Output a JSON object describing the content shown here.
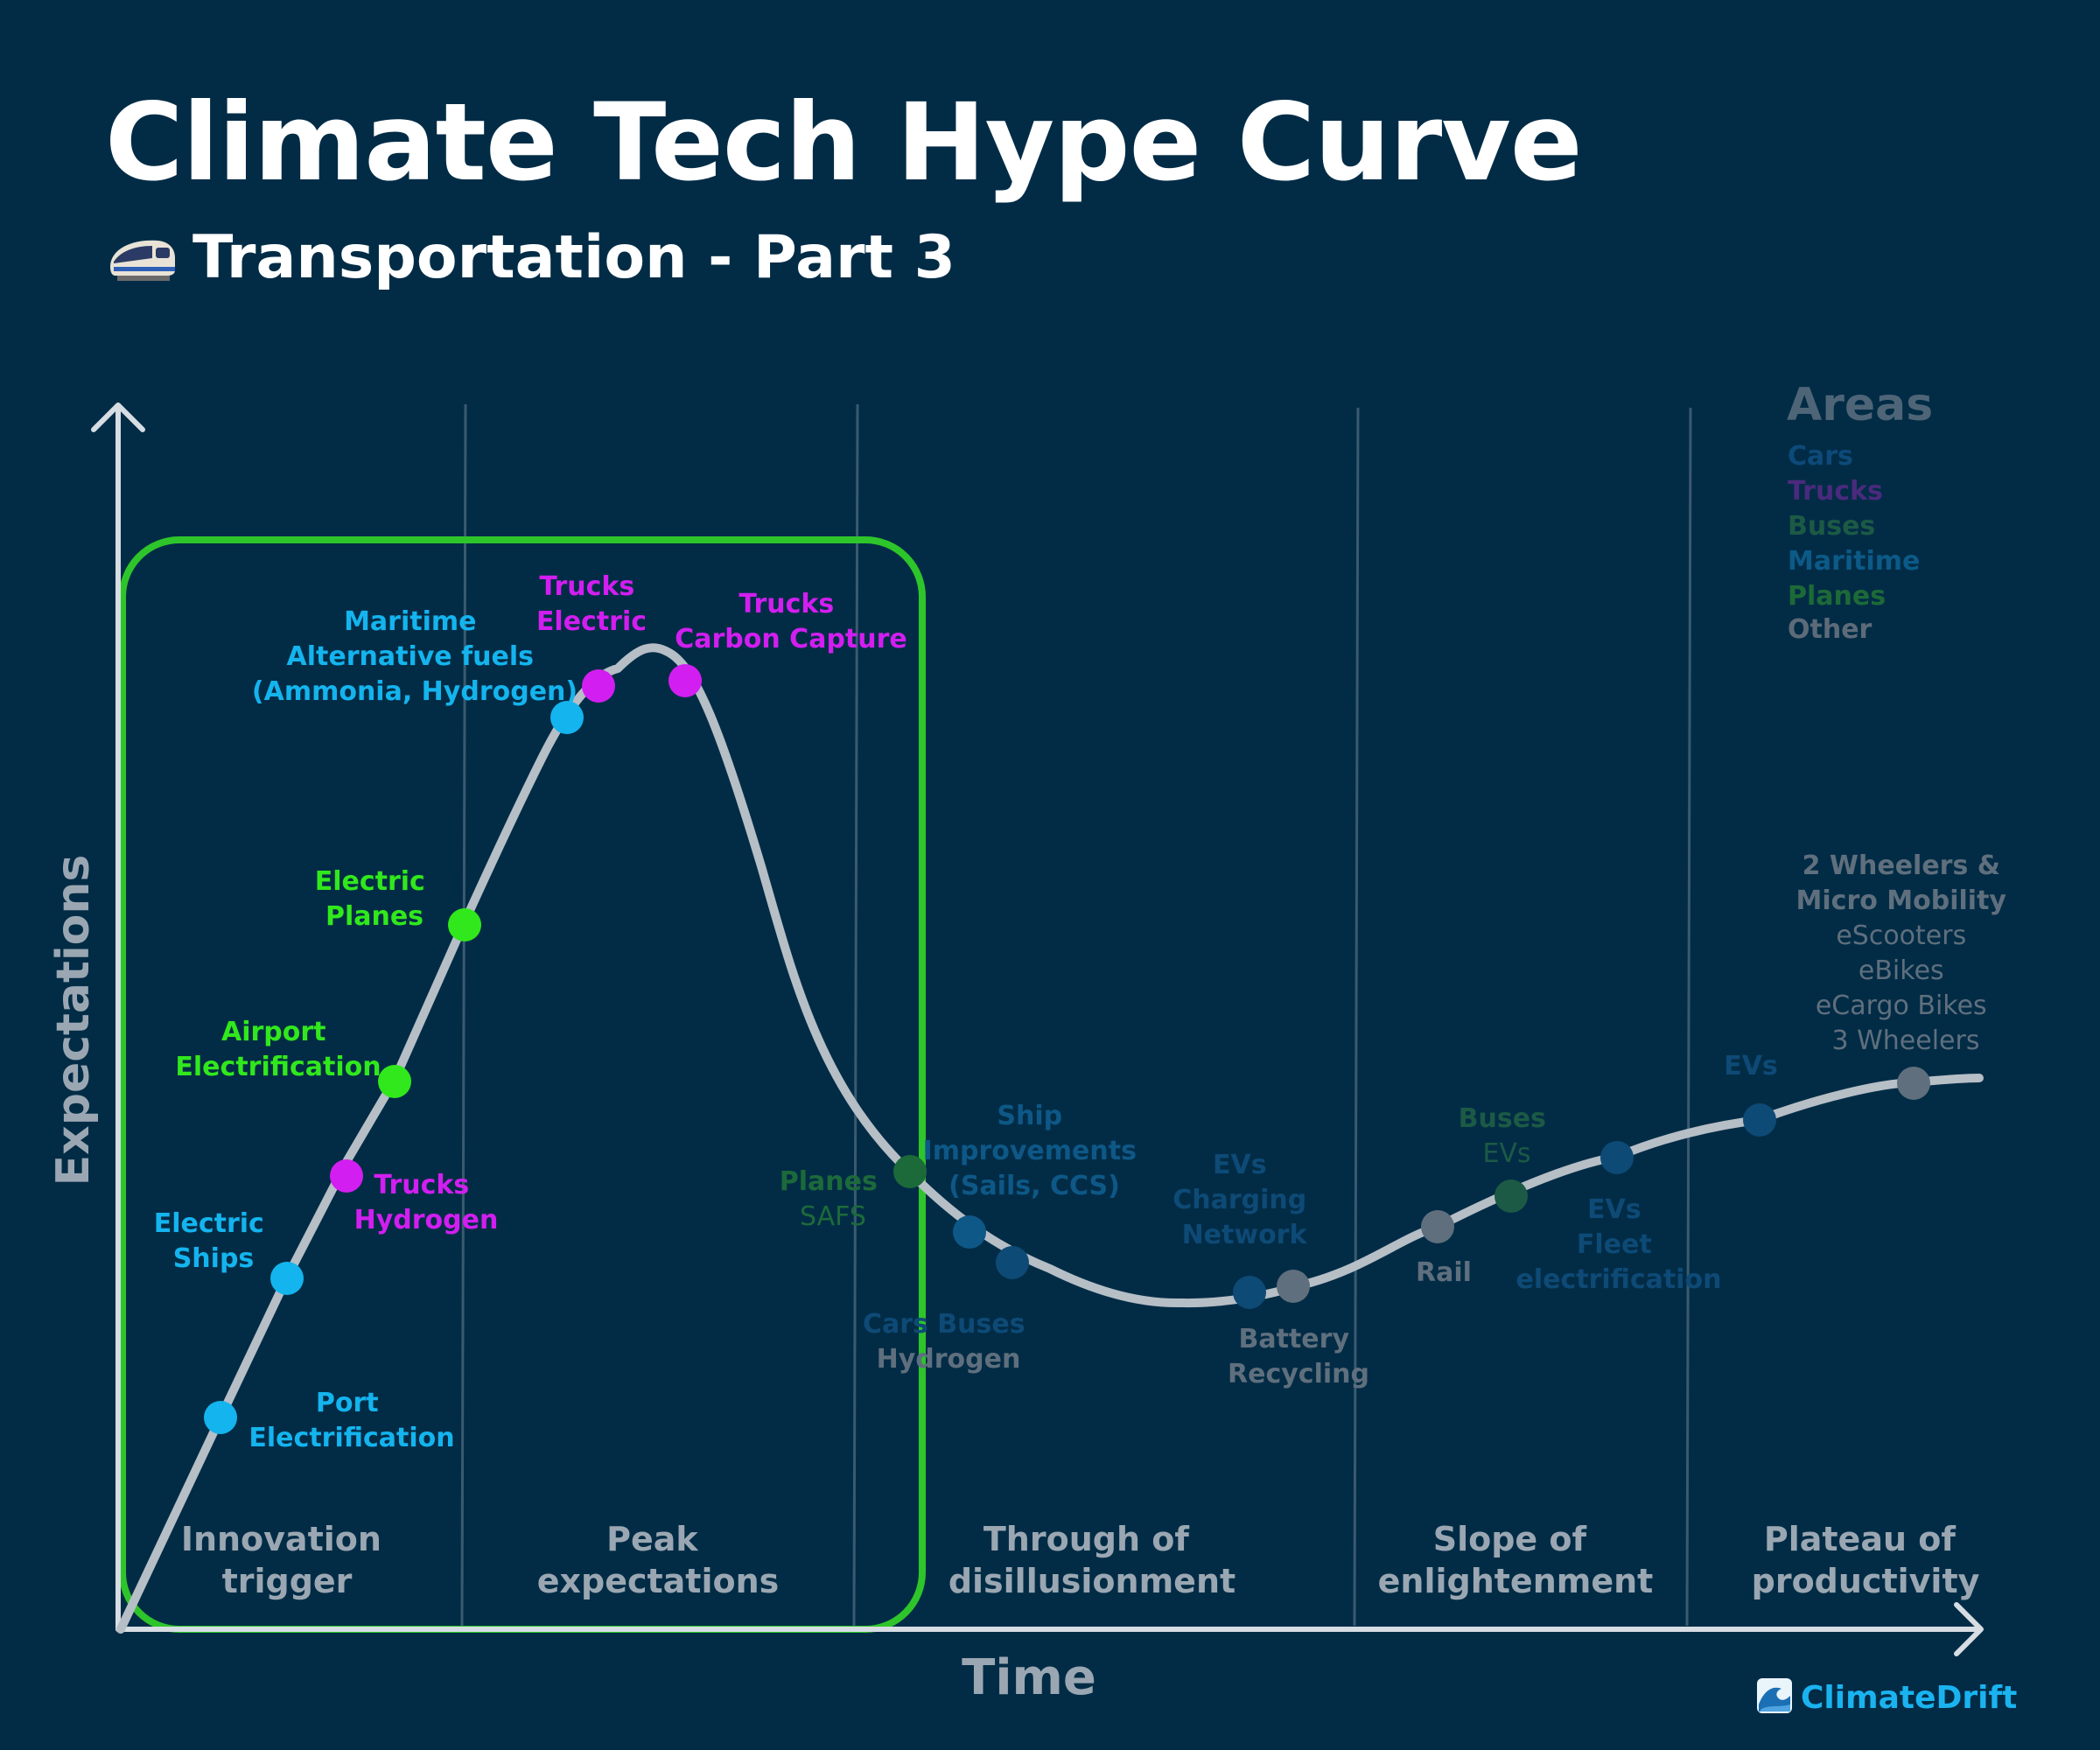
{
  "header": {
    "title": "Climate Tech Hype Curve",
    "subtitle": "Transportation - Part 3",
    "subtitle_icon": "train-icon"
  },
  "axes": {
    "x_label": "Time",
    "y_label": "Expectations"
  },
  "phases": [
    {
      "line1": "Innovation",
      "line2": "trigger"
    },
    {
      "line1": "Peak",
      "line2": "expectations"
    },
    {
      "line1": "Through of",
      "line2": "disillusionment"
    },
    {
      "line1": "Slope of",
      "line2": "enlightenment"
    },
    {
      "line1": "Plateau of",
      "line2": "productivity"
    }
  ],
  "legend": {
    "title": "Areas",
    "items": [
      {
        "label": "Cars",
        "color": "#0d4a79"
      },
      {
        "label": "Trucks",
        "color": "#4a2a7d"
      },
      {
        "label": "Buses",
        "color": "#1c5a45"
      },
      {
        "label": "Maritime",
        "color": "#0c5a88"
      },
      {
        "label": "Planes",
        "color": "#1d6a37"
      },
      {
        "label": "Other",
        "color": "#5d6b78"
      }
    ]
  },
  "annotations": [
    {
      "lines": [
        "Port",
        "Electrification"
      ],
      "color": "#14b4ee"
    },
    {
      "lines": [
        "Electric",
        "Ships"
      ],
      "color": "#14b4ee"
    },
    {
      "lines": [
        "Trucks",
        "Hydrogen"
      ],
      "color": "#d21ef0"
    },
    {
      "lines": [
        "Airport",
        "Electrification"
      ],
      "color": "#31e81c"
    },
    {
      "lines": [
        "Electric",
        "Planes"
      ],
      "color": "#31e81c"
    },
    {
      "lines": [
        "Maritime",
        "Alternative fuels",
        "(Ammonia, Hydrogen)"
      ],
      "color": "#14b4ee"
    },
    {
      "lines": [
        "Trucks",
        "Electric"
      ],
      "color": "#d21ef0"
    },
    {
      "lines": [
        "Trucks",
        "Carbon Capture"
      ],
      "color": "#d21ef0"
    },
    {
      "lines": [
        "Planes",
        "SAFS"
      ],
      "color": "#1c6a3a"
    },
    {
      "lines": [
        "Ship",
        "Improvements",
        "(Sails, CCS)"
      ],
      "color": "#0e5887"
    },
    {
      "lines": [
        "Cars Buses",
        "Hydrogen"
      ],
      "color": "#0e4a76"
    },
    {
      "lines": [
        "EVs",
        "Charging",
        "Network"
      ],
      "color": "#0e4a76"
    },
    {
      "lines": [
        "Battery",
        "Recycling"
      ],
      "color": "#5f6f7d"
    },
    {
      "lines": [
        "Rail"
      ],
      "color": "#5f6f7d"
    },
    {
      "lines": [
        "Buses",
        "EVs"
      ],
      "color": "#1c5a45"
    },
    {
      "lines": [
        "EVs",
        "Fleet",
        "electrification"
      ],
      "color": "#0e4a76"
    },
    {
      "lines": [
        "EVs"
      ],
      "color": "#0e4a76"
    },
    {
      "lines": [
        "2 Wheelers &",
        "Micro Mobility",
        "eScooters",
        "eBikes",
        "eCargo Bikes",
        "3 Wheelers"
      ],
      "color": "#5f6f7d"
    }
  ],
  "footer": {
    "brand": "ClimateDrift",
    "brand_icon": "wave-icon"
  },
  "colors": {
    "background": "#022c46",
    "curve": "#b6bec6",
    "highlight_box": "#2ec52a",
    "axis": "#d6dde3",
    "phase_text": "#9aa7b2",
    "brand": "#1ab3f0"
  }
}
